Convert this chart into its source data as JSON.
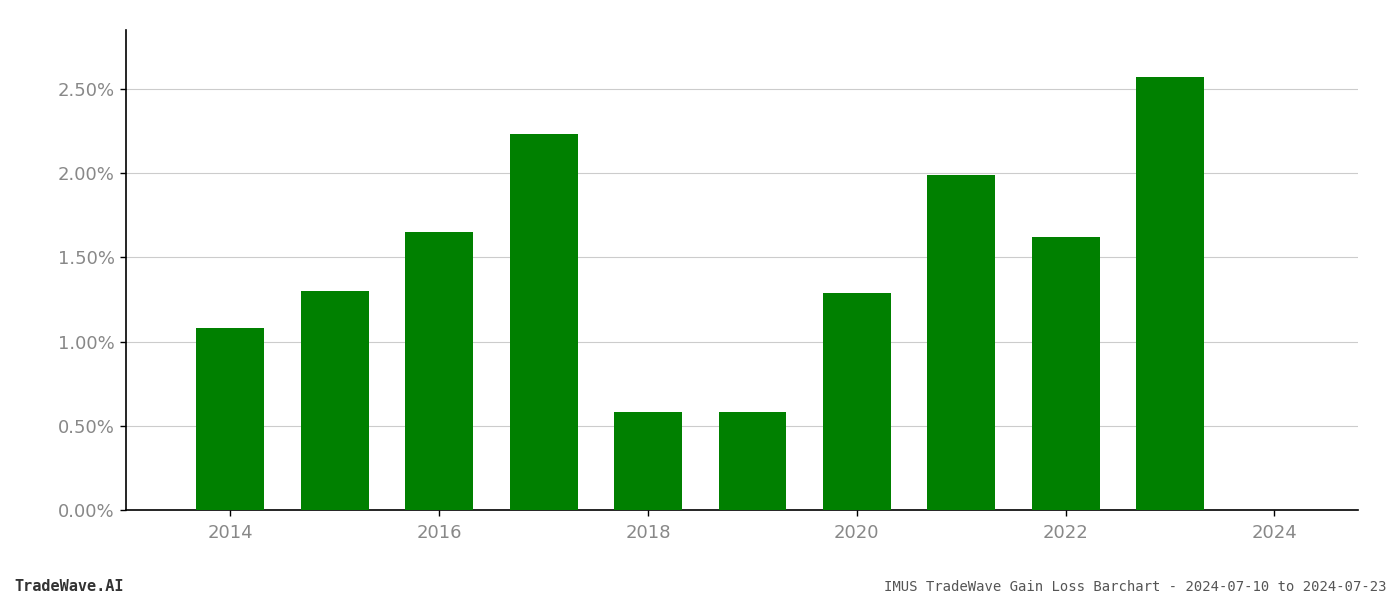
{
  "years": [
    2014,
    2015,
    2016,
    2017,
    2018,
    2019,
    2020,
    2021,
    2022,
    2023
  ],
  "values": [
    0.0108,
    0.013,
    0.0165,
    0.0223,
    0.0058,
    0.0058,
    0.0129,
    0.0199,
    0.0162,
    0.0257
  ],
  "bar_color": "#008000",
  "background_color": "#ffffff",
  "title": "IMUS TradeWave Gain Loss Barchart - 2024-07-10 to 2024-07-23",
  "watermark": "TradeWave.AI",
  "ylim": [
    0,
    0.0285
  ],
  "ytick_values": [
    0.0,
    0.005,
    0.01,
    0.015,
    0.02,
    0.025
  ],
  "ytick_labels": [
    "0.00%",
    "0.50%",
    "1.00%",
    "1.50%",
    "2.00%",
    "2.50%"
  ],
  "xtick_positions": [
    2014,
    2016,
    2018,
    2020,
    2022,
    2024
  ],
  "xtick_labels": [
    "2014",
    "2016",
    "2018",
    "2020",
    "2022",
    "2024"
  ],
  "grid_color": "#cccccc",
  "left_spine_color": "#000000",
  "bottom_spine_color": "#000000",
  "tick_color": "#888888",
  "title_fontsize": 10,
  "watermark_fontsize": 11,
  "tick_fontsize": 13,
  "bar_width": 0.65
}
